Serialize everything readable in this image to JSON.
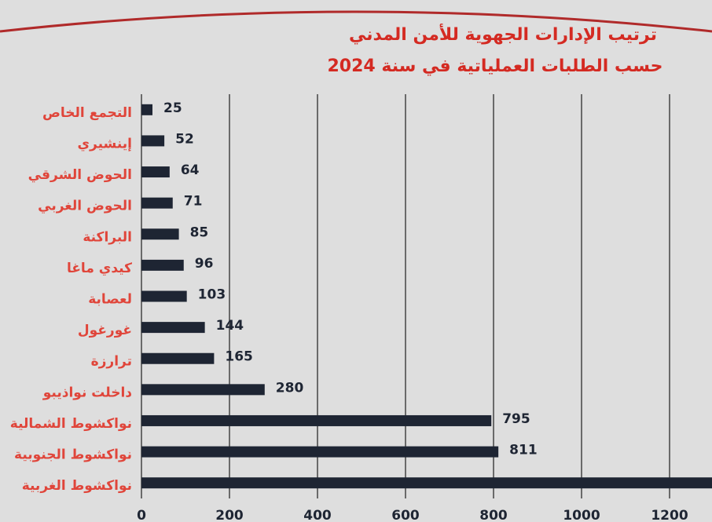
{
  "chart_data": {
    "type": "bar",
    "orientation": "horizontal",
    "title": "ترتيب الإدارات الجهوية للأمن المدني",
    "subtitle": "حسب الطلبات العملياتية في سنة 2024",
    "categories": [
      "التجمع الخاص",
      "إينشيري",
      "الحوض الشرقي",
      "الحوض الغربي",
      "البراكنة",
      "كيدي ماغا",
      "لعصابة",
      "غورغول",
      "ترارزة",
      "داخلت نواذيبو",
      "نواكشوط الشمالية",
      "نواكشوط الجنوبية",
      "نواكشوط الغربية"
    ],
    "values": [
      25,
      52,
      64,
      71,
      85,
      96,
      103,
      144,
      165,
      280,
      795,
      811,
      1300
    ],
    "value_labels": [
      "25",
      "52",
      "64",
      "71",
      "85",
      "96",
      "103",
      "144",
      "165",
      "280",
      "795",
      "811",
      null
    ],
    "color": "#1e2533",
    "xlim": [
      0,
      1250
    ],
    "xticks": [
      0,
      200,
      400,
      600,
      800,
      1000,
      1200
    ],
    "grid": true
  }
}
